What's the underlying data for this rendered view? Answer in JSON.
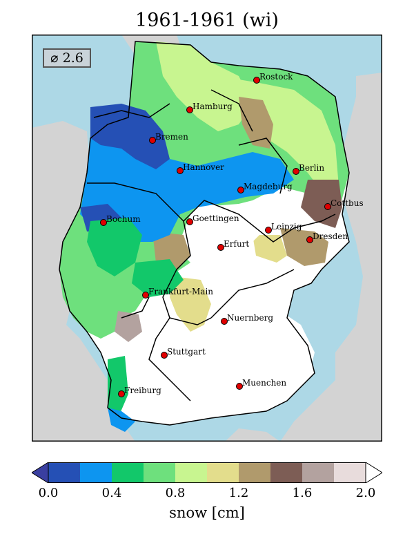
{
  "title": "1961-1961 (wi)",
  "average": {
    "symbol": "⌀",
    "value": "2.6"
  },
  "cities": [
    {
      "name": "Rostock",
      "label": "Rostock"
    },
    {
      "name": "Hamburg",
      "label": "Hamburg"
    },
    {
      "name": "Bremen",
      "label": "Bremen"
    },
    {
      "name": "Berlin",
      "label": "Berlin"
    },
    {
      "name": "Hannover",
      "label": "Hannover"
    },
    {
      "name": "Magdeburg",
      "label": "Magdeburg"
    },
    {
      "name": "Cottbus",
      "label": "Cottbus"
    },
    {
      "name": "Bochum",
      "label": "Bochum"
    },
    {
      "name": "Goettingen",
      "label": "Goettingen"
    },
    {
      "name": "Leipzig",
      "label": "Leipzig"
    },
    {
      "name": "Dresden",
      "label": "Dresden"
    },
    {
      "name": "Erfurt",
      "label": "Erfurt"
    },
    {
      "name": "Frankfurt-Main",
      "label": "Frankfurt-Main"
    },
    {
      "name": "Nuernberg",
      "label": "Nuernberg"
    },
    {
      "name": "Stuttgart",
      "label": "Stuttgart"
    },
    {
      "name": "Muenchen",
      "label": "Muenchen"
    },
    {
      "name": "Freiburg",
      "label": "Freiburg"
    }
  ],
  "colorbar": {
    "label": "snow [cm]",
    "ticks": [
      "0.0",
      "0.4",
      "0.8",
      "1.2",
      "1.6",
      "2.0"
    ],
    "colors": [
      "#3a3fa0",
      "#2550b5",
      "#0d95f0",
      "#12c86a",
      "#6ee07d",
      "#c8f590",
      "#e3dd8c",
      "#b09a6c",
      "#7d5d55",
      "#b3a29f",
      "#e8dcdc",
      "#ffffff"
    ]
  },
  "map_colors": {
    "sea": "#add8e6",
    "land_outside": "#d3d3d3",
    "city_marker": "#e00000"
  }
}
